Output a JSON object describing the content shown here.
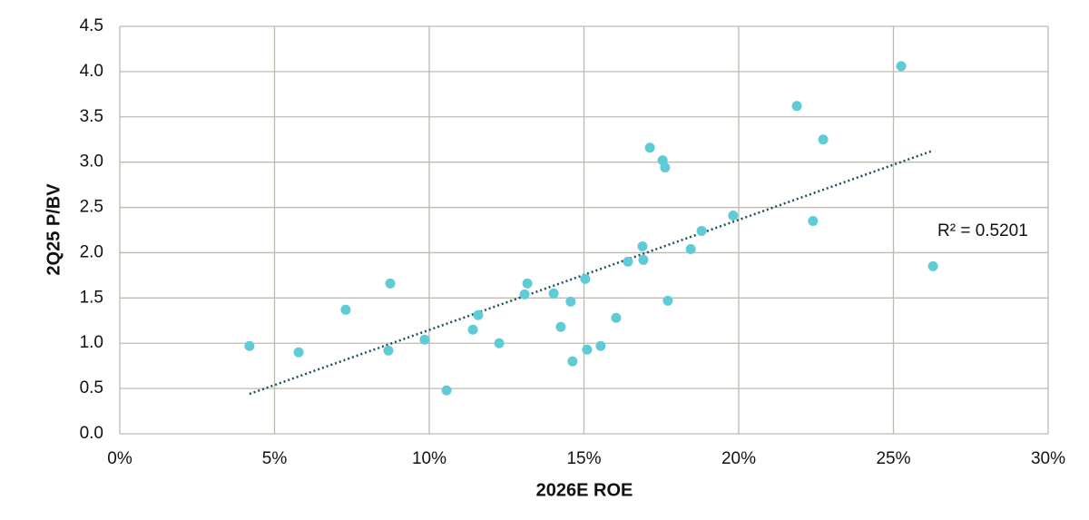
{
  "chart_data": {
    "type": "scatter",
    "x_label": "2026E ROE",
    "y_label": "2Q25 P/BV",
    "color": "#5fcbd6",
    "x": [
      4.19,
      5.78,
      7.3,
      8.68,
      8.74,
      9.85,
      10.56,
      11.41,
      11.58,
      12.26,
      13.08,
      13.17,
      14.02,
      14.25,
      14.57,
      14.63,
      15.04,
      15.1,
      15.54,
      16.04,
      16.42,
      16.89,
      16.92,
      17.13,
      17.54,
      17.62,
      17.71,
      18.45,
      18.8,
      19.82,
      21.88,
      22.4,
      22.73,
      25.25,
      26.28
    ],
    "values": [
      0.97,
      0.9,
      1.37,
      0.92,
      1.66,
      1.04,
      0.48,
      1.15,
      1.31,
      1.0,
      1.54,
      1.66,
      1.55,
      1.18,
      1.46,
      0.8,
      1.71,
      0.93,
      0.97,
      1.28,
      1.9,
      2.07,
      1.92,
      3.16,
      3.02,
      2.94,
      1.47,
      2.04,
      2.24,
      2.41,
      3.62,
      2.35,
      3.25,
      4.06,
      1.85
    ],
    "trendline": {
      "color": "#1d4f5c",
      "x": [
        4.19,
        26.22
      ],
      "y": [
        0.44,
        3.12
      ]
    },
    "annotation": "R² = 0.5201",
    "xlim": [
      0,
      30
    ],
    "xticks": [
      {
        "value": 0,
        "label": "0%"
      },
      {
        "value": 5,
        "label": "5%"
      },
      {
        "value": 10,
        "label": "10%"
      },
      {
        "value": 15,
        "label": "15%"
      },
      {
        "value": 20,
        "label": "20%"
      },
      {
        "value": 25,
        "label": "25%"
      },
      {
        "value": 30,
        "label": "30%"
      }
    ],
    "ylim": [
      0,
      4.5
    ],
    "yticks": [
      {
        "value": 0,
        "label": "0.0"
      },
      0.5,
      {
        "value": 1,
        "label": "1.0"
      },
      1.5,
      {
        "value": 2,
        "label": "2.0"
      },
      2.5,
      {
        "value": 3,
        "label": "3.0"
      },
      3.5,
      {
        "value": 4,
        "label": "4.0"
      },
      4.5
    ],
    "grid": true
  }
}
